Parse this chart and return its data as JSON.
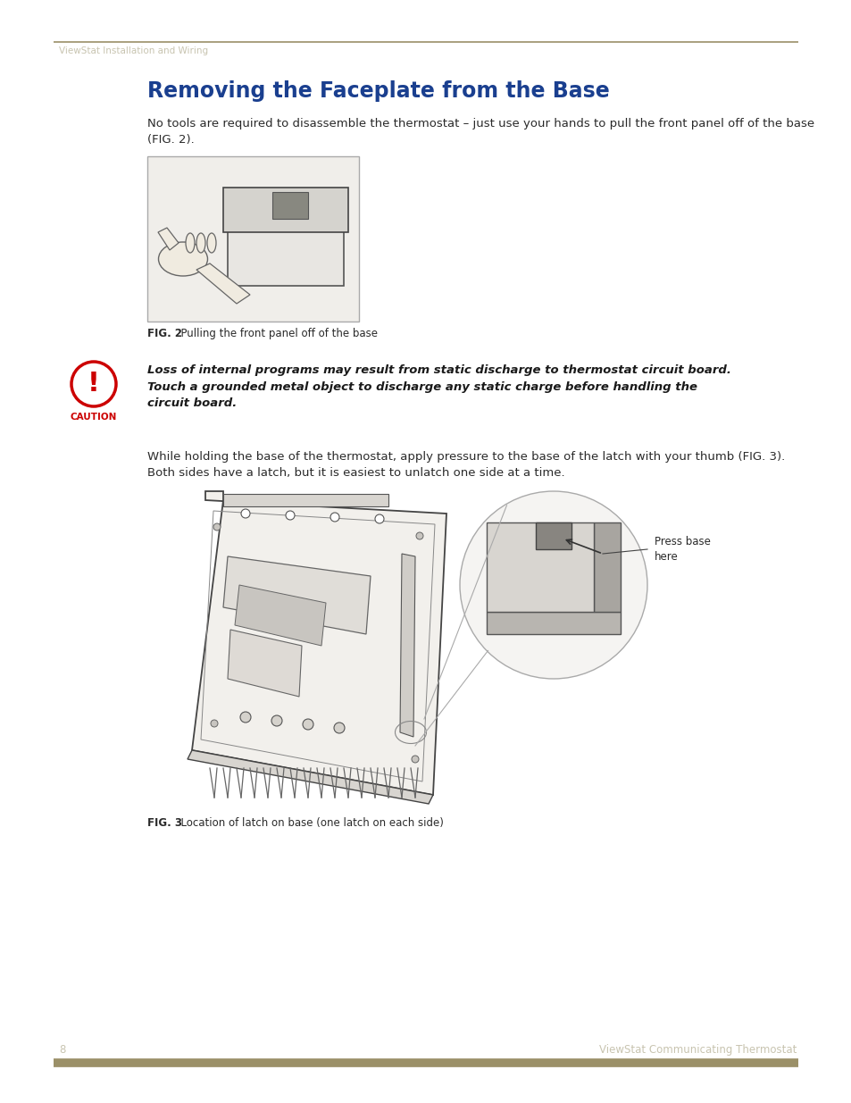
{
  "bg_color": "#ffffff",
  "header_line_color": "#9b9068",
  "header_text": "ViewStat Installation and Wiring",
  "header_text_color": "#c8c4b0",
  "footer_line_color": "#9b9068",
  "footer_left_text": "8",
  "footer_right_text": "ViewStat Communicating Thermostat",
  "footer_text_color": "#c8c4b0",
  "title": "Removing the Faceplate from the Base",
  "title_color": "#1a3f8f",
  "title_fontsize": 17,
  "body_text_color": "#2a2a2a",
  "body_fontsize": 9.5,
  "para1": "No tools are required to disassemble the thermostat – just use your hands to pull the front panel off of the base\n(FIG. 2).",
  "fig2_caption_bold": "FIG. 2",
  "fig2_caption_rest": "  Pulling the front panel off of the base",
  "fig3_caption_bold": "FIG. 3",
  "fig3_caption_rest": "  Location of latch on base (one latch on each side)",
  "caution_title": "CAUTION",
  "caution_text": "Loss of internal programs may result from static discharge to thermostat circuit board.\nTouch a grounded metal object to discharge any static charge before handling the\ncircuit board.",
  "caution_text_color": "#1a1a1a",
  "caution_title_color": "#cc0000",
  "para2": "While holding the base of the thermostat, apply pressure to the base of the latch with your thumb (FIG. 3).\nBoth sides have a latch, but it is easiest to unlatch one side at a time.",
  "press_label": "Press base\nhere"
}
